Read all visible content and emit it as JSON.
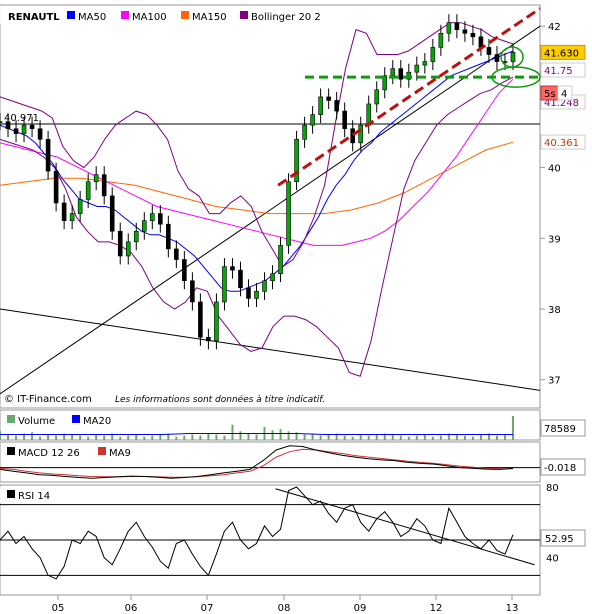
{
  "chart_data": {
    "type": "line",
    "instrument": "RENAUTL",
    "source": "© IT-Finance.com",
    "disclaimer": "Les informations sont données à titre indicatif.",
    "legend": [
      {
        "label": "MA50",
        "color": "#0000ff"
      },
      {
        "label": "MA100",
        "color": "#ff00ff"
      },
      {
        "label": "MA150",
        "color": "#ff6600"
      },
      {
        "label": "Bollinger 20 2",
        "color": "#800080"
      }
    ],
    "x_ticks": [
      "05",
      "06",
      "07",
      "08",
      "09",
      "12",
      "13"
    ],
    "price_panel": {
      "ylim": [
        36.6,
        42.3
      ],
      "y_ticks": [
        37,
        38,
        39,
        40,
        41,
        42
      ],
      "left_reference_label": "40.971",
      "left_reference_value": 40.971,
      "last_price_label": "41.630",
      "last_price_value": 41.63,
      "timeframe_badge": "5s",
      "badge_count": "4",
      "upper_band_label": "41.75",
      "lower_band_label": "41.248",
      "ma150_label": "40.361",
      "ma150_value": 40.361,
      "close": [
        40.65,
        40.55,
        40.48,
        40.6,
        40.55,
        40.4,
        39.95,
        39.5,
        39.25,
        39.35,
        39.55,
        39.8,
        39.9,
        39.6,
        39.1,
        38.75,
        38.95,
        39.1,
        39.25,
        39.35,
        39.2,
        38.85,
        38.7,
        38.4,
        38.1,
        37.6,
        37.55,
        38.1,
        38.6,
        38.55,
        38.3,
        38.15,
        38.25,
        38.4,
        38.5,
        38.9,
        39.8,
        40.4,
        40.6,
        40.75,
        41.0,
        40.95,
        40.8,
        40.55,
        40.35,
        40.6,
        40.9,
        41.1,
        41.3,
        41.4,
        41.25,
        41.35,
        41.45,
        41.5,
        41.7,
        41.9,
        42.05,
        41.95,
        41.9,
        41.85,
        41.7,
        41.6,
        41.5,
        41.5,
        41.63
      ],
      "ma50": [
        40.6,
        40.55,
        40.5,
        40.45,
        40.35,
        40.2,
        40.05,
        39.85,
        39.7,
        39.55,
        39.5,
        39.45,
        39.45,
        39.4,
        39.3,
        39.2,
        39.1,
        39.05,
        39.05,
        39.0,
        38.95,
        38.85,
        38.75,
        38.6,
        38.45,
        38.3,
        38.25,
        38.25,
        38.3,
        38.35,
        38.4,
        38.5,
        38.6,
        38.75,
        38.9,
        39.1,
        39.3,
        39.55,
        39.75,
        39.9,
        40.1,
        40.25,
        40.35,
        40.5,
        40.6,
        40.7,
        40.8,
        40.9,
        41.0,
        41.1,
        41.2,
        41.3,
        41.35,
        41.4,
        41.45,
        41.5,
        41.55,
        41.6,
        41.65
      ],
      "ma100": [
        40.35,
        40.3,
        40.25,
        40.2,
        40.15,
        40.05,
        39.95,
        39.85,
        39.75,
        39.65,
        39.55,
        39.45,
        39.4,
        39.35,
        39.3,
        39.25,
        39.2,
        39.15,
        39.1,
        39.05,
        39.0,
        38.95,
        38.9,
        38.9,
        38.9,
        38.95,
        39.0,
        39.1,
        39.25,
        39.45,
        39.65,
        39.9,
        40.15,
        40.45,
        40.75,
        41.05,
        41.25
      ],
      "ma150": [
        39.75,
        39.8,
        39.85,
        39.85,
        39.8,
        39.75,
        39.65,
        39.55,
        39.45,
        39.4,
        39.35,
        39.35,
        39.35,
        39.4,
        39.5,
        39.65,
        39.85,
        40.05,
        40.25,
        40.36
      ],
      "boll_upper": [
        41.0,
        40.95,
        40.9,
        40.85,
        40.8,
        40.7,
        40.3,
        40.1,
        40.0,
        40.15,
        40.4,
        40.6,
        40.7,
        40.8,
        40.75,
        40.6,
        40.4,
        39.95,
        39.7,
        39.6,
        39.35,
        39.35,
        39.5,
        39.6,
        39.45,
        39.1,
        38.85,
        38.6,
        38.7,
        38.95,
        39.3,
        39.75,
        40.6,
        41.4,
        41.95,
        41.9,
        41.6,
        41.6,
        41.6,
        41.65,
        41.75,
        41.85,
        41.95,
        42.05,
        42.05,
        42.0,
        41.95,
        41.85,
        41.8,
        41.75
      ],
      "boll_lower": [
        40.4,
        40.35,
        40.3,
        40.25,
        40.15,
        40.0,
        39.7,
        39.3,
        39.1,
        38.95,
        38.95,
        38.9,
        38.8,
        38.6,
        38.3,
        38.1,
        38.0,
        38.1,
        38.3,
        38.25,
        37.9,
        37.7,
        37.5,
        37.4,
        37.45,
        37.75,
        37.9,
        37.9,
        37.85,
        37.75,
        37.6,
        37.45,
        37.1,
        37.05,
        37.55,
        38.3,
        39.0,
        39.7,
        40.1,
        40.35,
        40.6,
        40.75,
        40.85,
        40.95,
        41.05,
        41.1,
        41.2,
        41.28
      ],
      "support_line_y": 41.28,
      "resistance_trendline": {
        "x": [
          0.515,
          1.0
        ],
        "y": [
          39.75,
          42.25
        ]
      },
      "long_trendline": {
        "x": [
          0.0,
          1.0
        ],
        "y": [
          36.8,
          42.0
        ]
      },
      "falling_trendline": {
        "x": [
          0.0,
          1.0
        ],
        "y": [
          38.0,
          36.85
        ]
      }
    },
    "volume_panel": {
      "legend": [
        {
          "label": "Volume",
          "color": "#6ba86b"
        },
        {
          "label": "MA20",
          "color": "#0000ff"
        }
      ],
      "last_value_label": "78589",
      "values": [
        8,
        5,
        4,
        6,
        7,
        3,
        5,
        4,
        6,
        5,
        4,
        3,
        5,
        4,
        6,
        3,
        4,
        5,
        3,
        4,
        5,
        6,
        3,
        4,
        5,
        4,
        6,
        5,
        4,
        14,
        8,
        6,
        5,
        12,
        9,
        10,
        8,
        7,
        5,
        6,
        4,
        5,
        6,
        4,
        3,
        5,
        4,
        5,
        6,
        5,
        4,
        3,
        4,
        5,
        3,
        4,
        6,
        5,
        4,
        3,
        5,
        6,
        4,
        5,
        22
      ],
      "ma20": [
        5,
        5,
        5,
        5,
        5,
        5,
        5,
        6,
        6,
        6,
        6,
        6,
        5,
        5,
        5,
        5,
        5,
        5,
        5,
        5
      ]
    },
    "macd_panel": {
      "legend": [
        {
          "label": "MACD 12 26",
          "color": "#000000"
        },
        {
          "label": "MA9",
          "color": "#cc3333"
        }
      ],
      "last_value_label": "-0.018",
      "zero_line": 0,
      "macd": [
        -0.05,
        -0.1,
        -0.15,
        -0.2,
        -0.22,
        -0.25,
        -0.28,
        -0.3,
        -0.28,
        -0.26,
        -0.24,
        -0.25,
        -0.27,
        -0.3,
        -0.28,
        -0.25,
        -0.2,
        -0.15,
        -0.1,
        -0.05,
        0.2,
        0.5,
        0.62,
        0.6,
        0.5,
        0.42,
        0.35,
        0.3,
        0.25,
        0.22,
        0.2,
        0.15,
        0.12,
        0.1,
        0.05,
        0.0,
        -0.02,
        -0.04,
        -0.05,
        -0.02
      ],
      "signal": [
        -0.02,
        -0.05,
        -0.1,
        -0.15,
        -0.18,
        -0.2,
        -0.23,
        -0.25,
        -0.26,
        -0.26,
        -0.25,
        -0.25,
        -0.26,
        -0.27,
        -0.27,
        -0.26,
        -0.23,
        -0.2,
        -0.15,
        -0.1,
        0.05,
        0.3,
        0.45,
        0.52,
        0.5,
        0.45,
        0.4,
        0.34,
        0.3,
        0.26,
        0.22,
        0.18,
        0.15,
        0.12,
        0.08,
        0.04,
        0.01,
        -0.02,
        -0.03,
        -0.03
      ]
    },
    "rsi_panel": {
      "legend": [
        {
          "label": "RSI 14",
          "color": "#000000"
        }
      ],
      "y_ticks": [
        80,
        40
      ],
      "levels": [
        70,
        50,
        30
      ],
      "last_value_label": "52.95",
      "ylim": [
        20,
        80
      ],
      "values": [
        50,
        55,
        48,
        52,
        45,
        40,
        30,
        28,
        35,
        50,
        48,
        55,
        52,
        40,
        36,
        45,
        55,
        60,
        52,
        46,
        38,
        34,
        48,
        50,
        42,
        35,
        30,
        42,
        55,
        60,
        50,
        45,
        48,
        58,
        52,
        56,
        78,
        80,
        75,
        70,
        72,
        65,
        60,
        68,
        70,
        60,
        55,
        62,
        66,
        60,
        52,
        55,
        62,
        58,
        50,
        48,
        68,
        60,
        52,
        48,
        45,
        50,
        44,
        42,
        53
      ],
      "trendline": {
        "x": [
          0.51,
          0.99
        ],
        "y": [
          79,
          36
        ]
      }
    }
  }
}
